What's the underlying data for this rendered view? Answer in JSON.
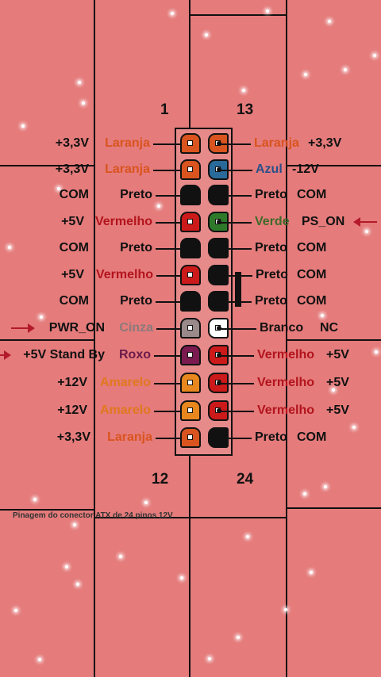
{
  "header": {
    "pin_first": "1",
    "pin_thirteen": "13"
  },
  "footer": {
    "pin_twelve": "12",
    "pin_last": "24"
  },
  "caption": "Pinagem do conector ATX de 24 pinos 12V",
  "colors": {
    "laranja": "#d9541e",
    "preto": "#111111",
    "vermelho": "#cc1a1a",
    "cinza": "#9a8a8a",
    "roxo": "#7a1a4f",
    "amarelo": "#e8871e",
    "azul": "#2a6a9a",
    "verde": "#2f7a2a",
    "branco": "#ffffff",
    "arrow": "#b31b2c"
  },
  "rows": [
    {
      "left_volt": "+3,3V",
      "left_color": "Laranja",
      "left_fill": "#d9541e",
      "left_text_color": "#d9541e",
      "right_color": "Laranja",
      "right_fill": "#d9541e",
      "right_text_color": "#d9541e",
      "right_volt": "+3,3V"
    },
    {
      "left_volt": "+3,3V",
      "left_color": "Laranja",
      "left_fill": "#d9541e",
      "left_text_color": "#d9541e",
      "right_color": "Azul",
      "right_fill": "#2a6a9a",
      "right_text_color": "#2a4f8a",
      "right_volt": "-12V"
    },
    {
      "left_volt": "COM",
      "left_color": "Preto",
      "left_fill": "#111111",
      "left_text_color": "#111111",
      "right_color": "Preto",
      "right_fill": "#111111",
      "right_text_color": "#111111",
      "right_volt": "COM"
    },
    {
      "left_volt": "+5V",
      "left_color": "Vermelho",
      "left_fill": "#cc1a1a",
      "left_text_color": "#b3141c",
      "right_color": "Verde",
      "right_fill": "#2f7a2a",
      "right_text_color": "#3f6a2a",
      "right_volt": "PS_ON"
    },
    {
      "left_volt": "COM",
      "left_color": "Preto",
      "left_fill": "#111111",
      "left_text_color": "#111111",
      "right_color": "Preto",
      "right_fill": "#111111",
      "right_text_color": "#111111",
      "right_volt": "COM"
    },
    {
      "left_volt": "+5V",
      "left_color": "Vermelho",
      "left_fill": "#cc1a1a",
      "left_text_color": "#b3141c",
      "right_color": "Preto",
      "right_fill": "#111111",
      "right_text_color": "#111111",
      "right_volt": "COM"
    },
    {
      "left_volt": "COM",
      "left_color": "Preto",
      "left_fill": "#111111",
      "left_text_color": "#111111",
      "right_color": "Preto",
      "right_fill": "#111111",
      "right_text_color": "#111111",
      "right_volt": "COM"
    },
    {
      "left_volt": "PWR_ON",
      "left_color": "Cinza",
      "left_fill": "#9a8a8a",
      "left_text_color": "#8a7a7a",
      "right_color": "Branco",
      "right_fill": "#ffffff",
      "right_text_color": "#111111",
      "right_volt": "NC"
    },
    {
      "left_volt": "+5V Stand By",
      "left_color": "Roxo",
      "left_fill": "#7a1a4f",
      "left_text_color": "#6a1a4a",
      "right_color": "Vermelho",
      "right_fill": "#cc1a1a",
      "right_text_color": "#b3141c",
      "right_volt": "+5V"
    },
    {
      "left_volt": "+12V",
      "left_color": "Amarelo",
      "left_fill": "#e8871e",
      "left_text_color": "#e0781e",
      "right_color": "Vermelho",
      "right_fill": "#cc1a1a",
      "right_text_color": "#b3141c",
      "right_volt": "+5V"
    },
    {
      "left_volt": "+12V",
      "left_color": "Amarelo",
      "left_fill": "#e8871e",
      "left_text_color": "#e0781e",
      "right_color": "Vermelho",
      "right_fill": "#cc1a1a",
      "right_text_color": "#b3141c",
      "right_volt": "+5V"
    },
    {
      "left_volt": "+3,3V",
      "left_color": "Laranja",
      "left_fill": "#d9541e",
      "left_text_color": "#d9541e",
      "right_color": "Preto",
      "right_fill": "#111111",
      "right_text_color": "#111111",
      "right_volt": "COM"
    }
  ]
}
